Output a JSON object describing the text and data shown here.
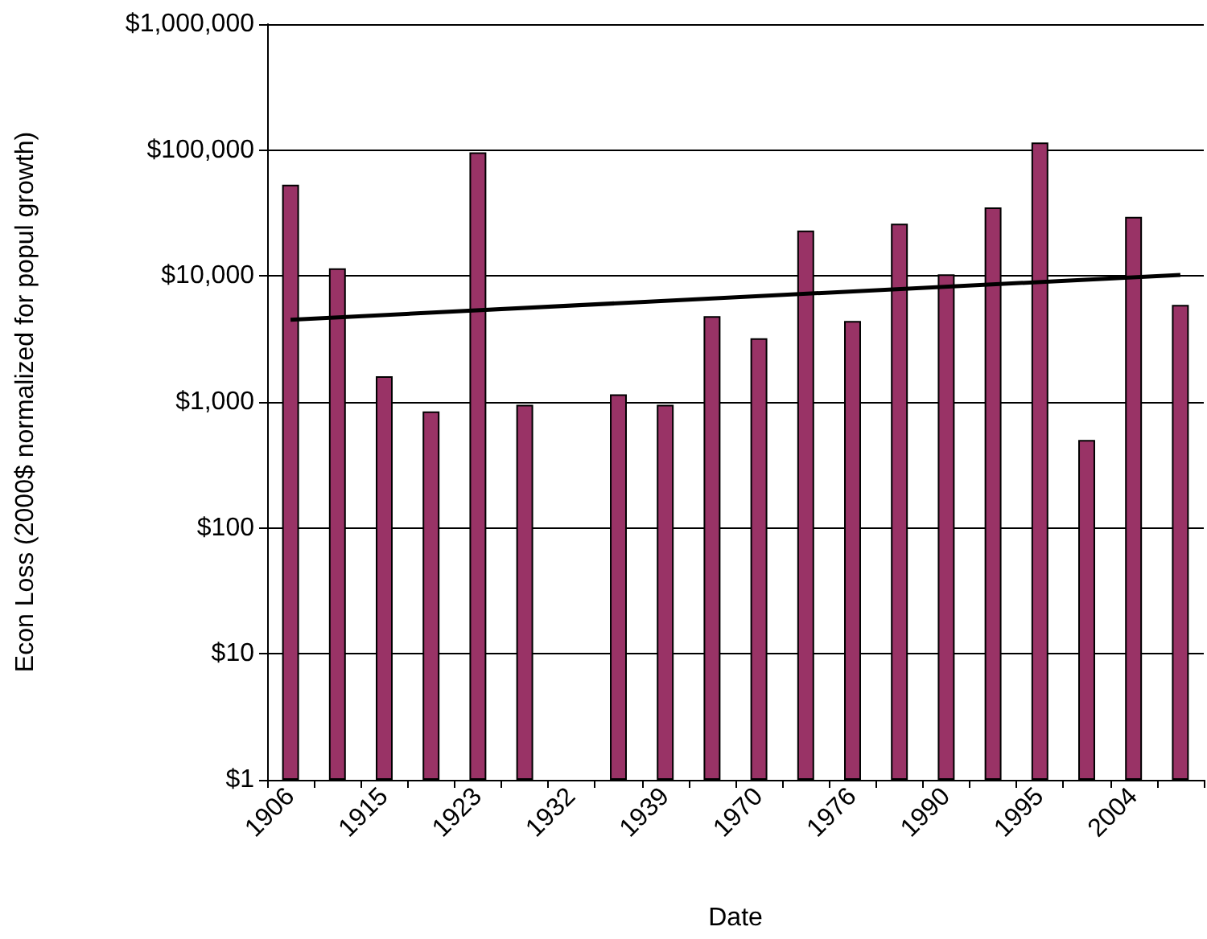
{
  "chart_data": {
    "type": "bar",
    "xlabel": "Date",
    "ylabel": "Econ Loss (2000$ normalized for popul growth)",
    "categories": [
      "1906",
      null,
      "1915",
      null,
      "1923",
      null,
      "1932",
      null,
      "1939",
      null,
      "1970",
      null,
      "1976",
      null,
      "1990",
      null,
      "1995",
      null,
      "2004",
      null
    ],
    "series": [
      {
        "color": "#993366",
        "values": [
          53000,
          11500,
          1600,
          840,
          96000,
          950,
          null,
          1150,
          950,
          4800,
          3200,
          23000,
          4400,
          26000,
          10300,
          35000,
          115000,
          500,
          29500,
          5900
        ]
      },
      {
        "type": "line",
        "color": "#000000",
        "marker": "none",
        "line_style": "solid",
        "values": [
          4500,
          null,
          null,
          null,
          null,
          null,
          null,
          null,
          null,
          null,
          null,
          null,
          null,
          null,
          null,
          null,
          null,
          null,
          null,
          10200
        ]
      }
    ],
    "log": "y",
    "ylim": [
      1,
      1000000
    ],
    "yticks": [
      {
        "value": 1,
        "label": "$1"
      },
      {
        "value": 10,
        "label": "$10"
      },
      {
        "value": 100,
        "label": "$100"
      },
      {
        "value": 1000,
        "label": "$1,000"
      },
      {
        "value": 10000,
        "label": "$10,000"
      },
      {
        "value": 100000,
        "label": "$100,000"
      },
      {
        "value": 1000000,
        "label": "$1,000,000"
      }
    ],
    "grid": "y"
  }
}
